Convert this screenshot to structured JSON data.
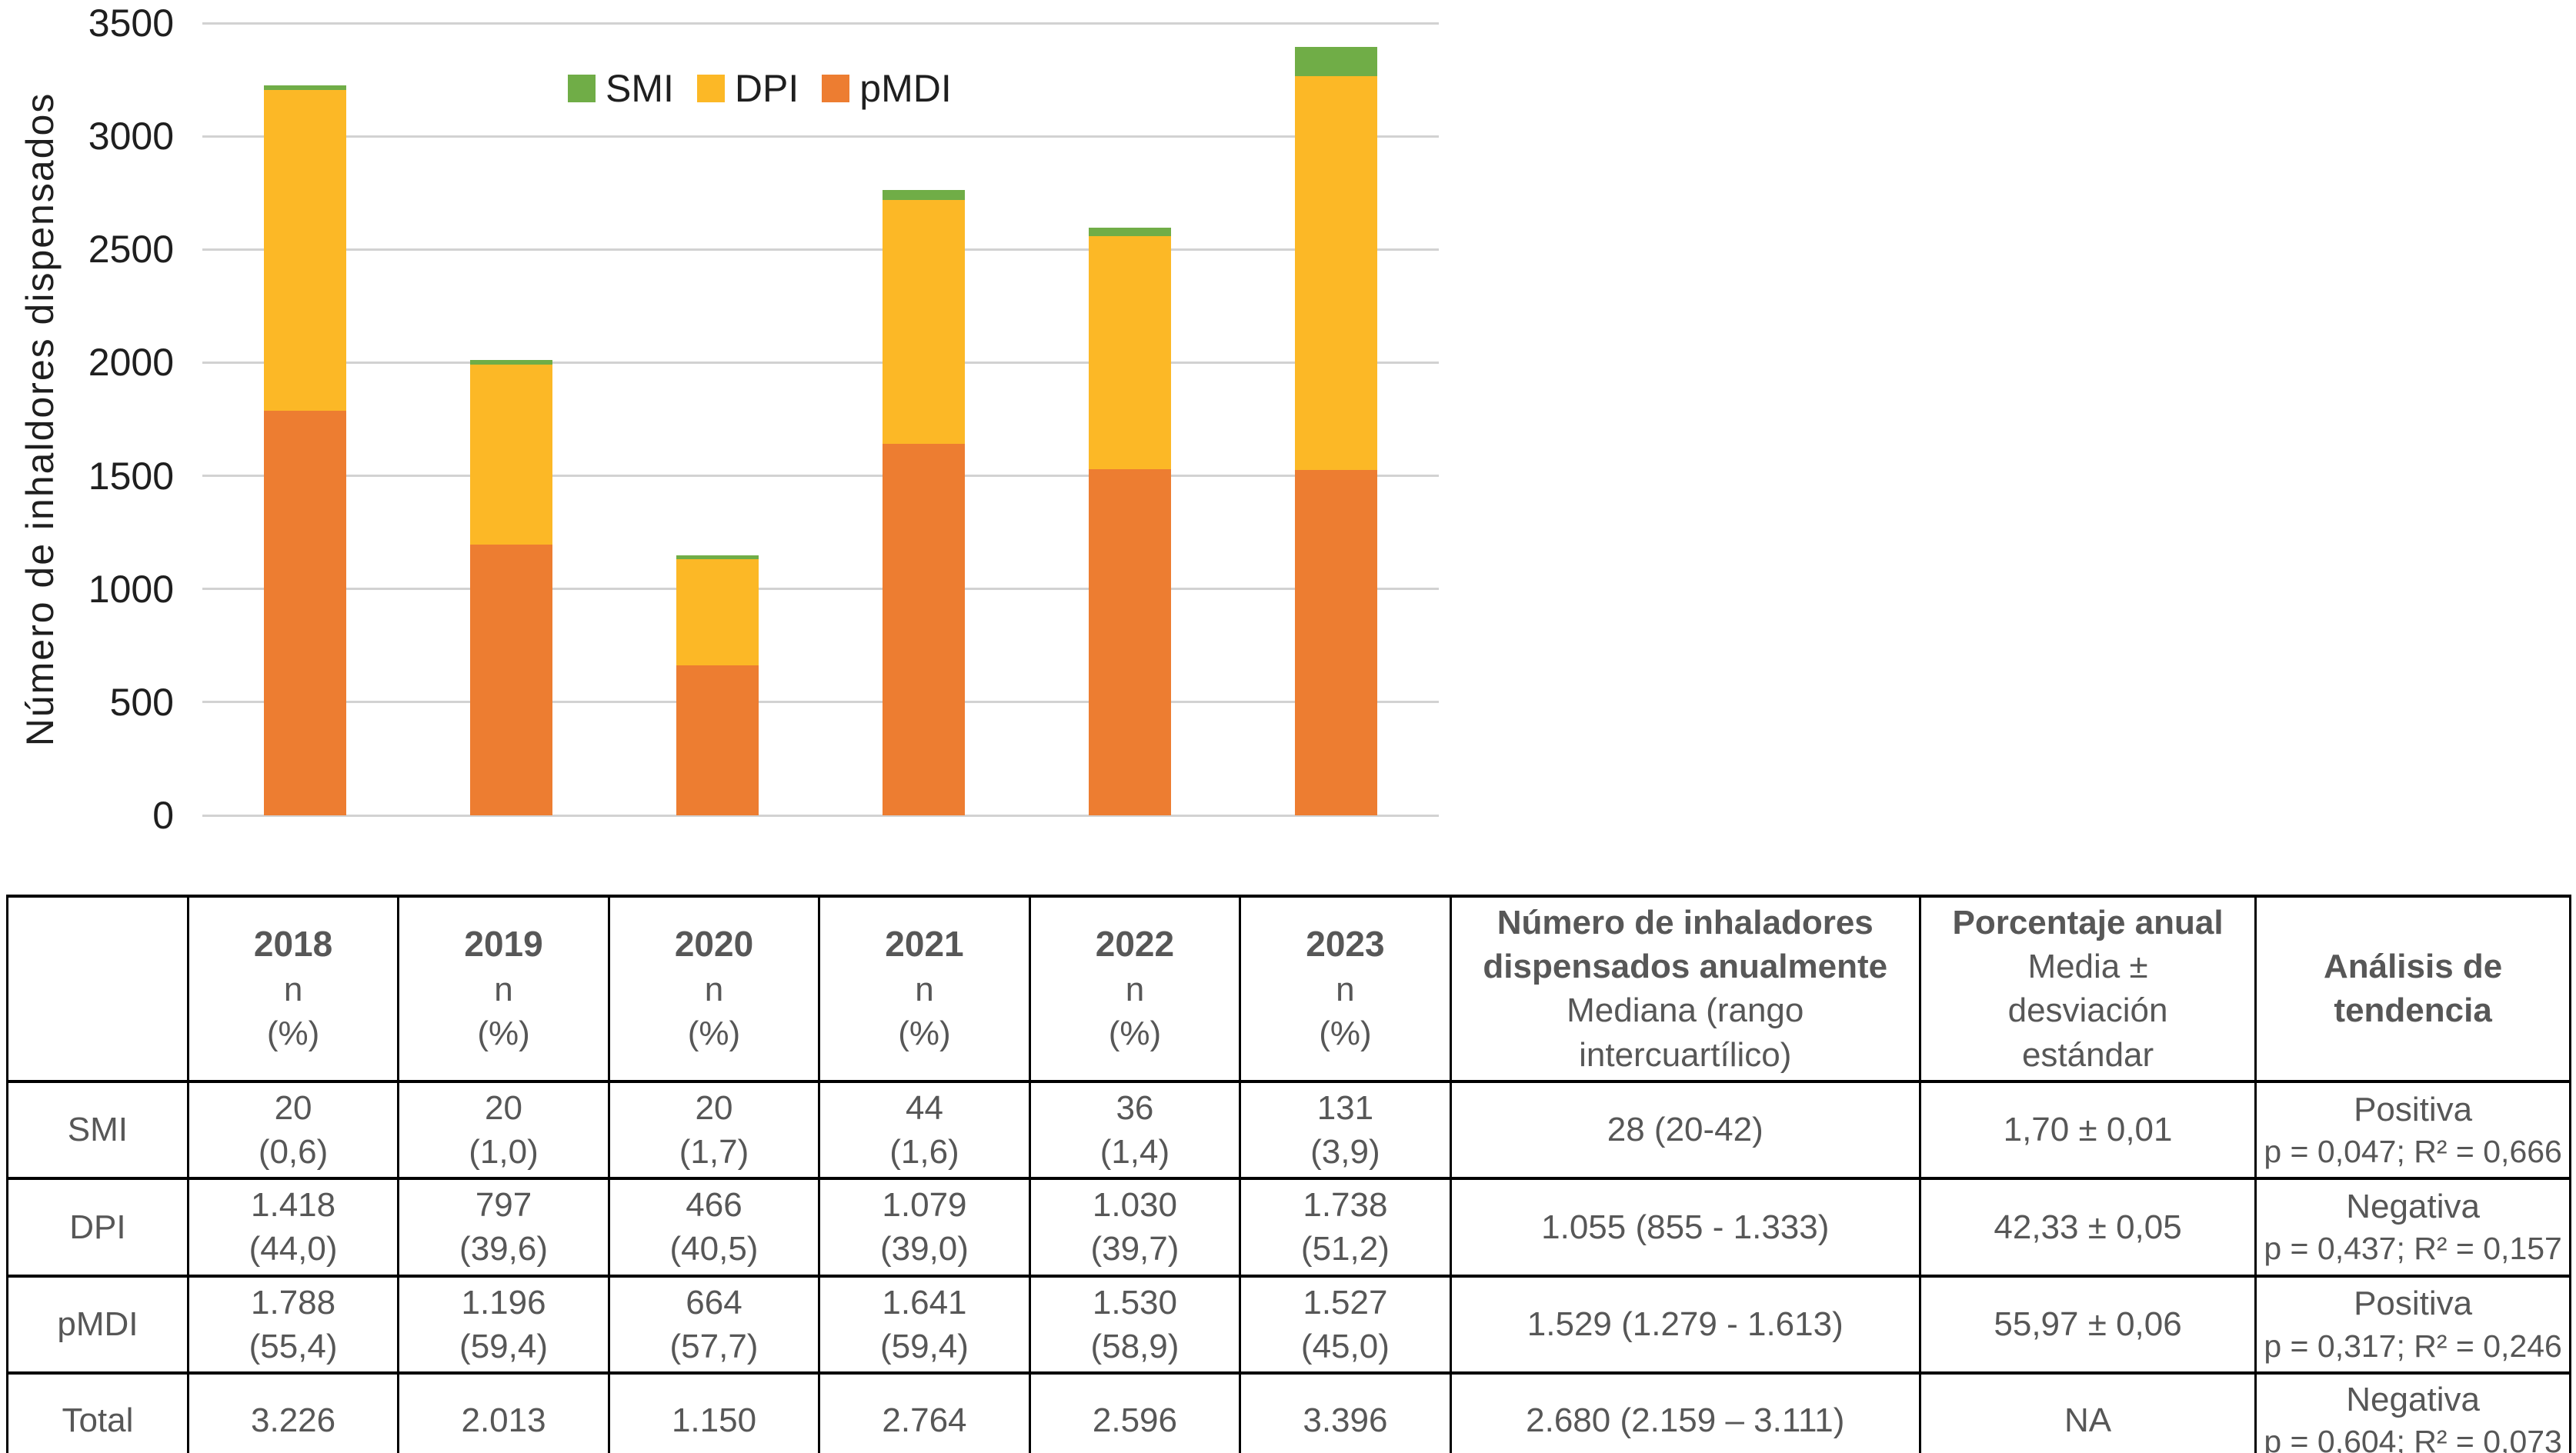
{
  "chart_data": {
    "type": "bar",
    "stacked": true,
    "title": "",
    "ylabel": "Número de inhaldores dispensados",
    "ylim": [
      0,
      3500
    ],
    "y_ticks": [
      3500,
      3000,
      2500,
      2000,
      1500,
      1000,
      500,
      0
    ],
    "grid": true,
    "legend_position": "top-center",
    "categories": [
      "2018",
      "2019",
      "2020",
      "2021",
      "2022",
      "2023"
    ],
    "x_axis_labels_visible": false,
    "series": [
      {
        "name": "SMI",
        "color": "#70AD47",
        "values": [
          20,
          20,
          20,
          44,
          36,
          131
        ]
      },
      {
        "name": "DPI",
        "color": "#FCB826",
        "values": [
          1418,
          797,
          466,
          1079,
          1030,
          1738
        ]
      },
      {
        "name": "pMDI",
        "color": "#ED7D31",
        "values": [
          1788,
          1196,
          664,
          1641,
          1530,
          1527
        ]
      }
    ],
    "stack_bottom_to_top": [
      "pMDI",
      "DPI",
      "SMI"
    ],
    "totals": [
      3226,
      2013,
      1150,
      2764,
      2596,
      3396
    ]
  },
  "table": {
    "corner_label": "",
    "year_columns": [
      {
        "year": "2018",
        "line2": "n",
        "line3": "(%)"
      },
      {
        "year": "2019",
        "line2": "n",
        "line3": "(%)"
      },
      {
        "year": "2020",
        "line2": "n",
        "line3": "(%)"
      },
      {
        "year": "2021",
        "line2": "n",
        "line3": "(%)"
      },
      {
        "year": "2022",
        "line2": "n",
        "line3": "(%)"
      },
      {
        "year": "2023",
        "line2": "n",
        "line3": "(%)"
      }
    ],
    "stat_columns": [
      {
        "title_lines": [
          "Número de inhaladores",
          "dispensados anualmente"
        ],
        "subtitle_lines": [
          "Mediana (rango",
          "intercuartílico)"
        ]
      },
      {
        "title_lines": [
          "Porcentaje anual"
        ],
        "subtitle_lines": [
          "Media ±",
          "desviación",
          "estándar"
        ]
      },
      {
        "title_lines": [
          "Análisis de tendencia"
        ],
        "subtitle_lines": []
      }
    ],
    "rows": [
      {
        "label": "SMI",
        "year_values": [
          {
            "n": "20",
            "pct": "(0,6)"
          },
          {
            "n": "20",
            "pct": "(1,0)"
          },
          {
            "n": "20",
            "pct": "(1,7)"
          },
          {
            "n": "44",
            "pct": "(1,6)"
          },
          {
            "n": "36",
            "pct": "(1,4)"
          },
          {
            "n": "131",
            "pct": "(3,9)"
          }
        ],
        "median": "28 (20-42)",
        "mean_sd": "1,70 ± 0,01",
        "trend": "Positiva",
        "trend_stats": "p = 0,047; R² = 0,666"
      },
      {
        "label": "DPI",
        "year_values": [
          {
            "n": "1.418",
            "pct": "(44,0)"
          },
          {
            "n": "797",
            "pct": "(39,6)"
          },
          {
            "n": "466",
            "pct": "(40,5)"
          },
          {
            "n": "1.079",
            "pct": "(39,0)"
          },
          {
            "n": "1.030",
            "pct": "(39,7)"
          },
          {
            "n": "1.738",
            "pct": "(51,2)"
          }
        ],
        "median": "1.055 (855 - 1.333)",
        "mean_sd": "42,33 ± 0,05",
        "trend": "Negativa",
        "trend_stats": "p = 0,437; R² = 0,157"
      },
      {
        "label": "pMDI",
        "year_values": [
          {
            "n": "1.788",
            "pct": "(55,4)"
          },
          {
            "n": "1.196",
            "pct": "(59,4)"
          },
          {
            "n": "664",
            "pct": "(57,7)"
          },
          {
            "n": "1.641",
            "pct": "(59,4)"
          },
          {
            "n": "1.530",
            "pct": "(58,9)"
          },
          {
            "n": "1.527",
            "pct": "(45,0)"
          }
        ],
        "median": "1.529 (1.279 - 1.613)",
        "mean_sd": "55,97 ± 0,06",
        "trend": "Positiva",
        "trend_stats": "p = 0,317; R² = 0,246"
      },
      {
        "label": "Total",
        "year_values": [
          {
            "n": "3.226",
            "pct": ""
          },
          {
            "n": "2.013",
            "pct": ""
          },
          {
            "n": "1.150",
            "pct": ""
          },
          {
            "n": "2.764",
            "pct": ""
          },
          {
            "n": "2.596",
            "pct": ""
          },
          {
            "n": "3.396",
            "pct": ""
          }
        ],
        "median": "2.680 (2.159 – 3.111)",
        "mean_sd": "NA",
        "trend": "Negativa",
        "trend_stats": "p = 0,604; R² = 0,073"
      }
    ]
  }
}
